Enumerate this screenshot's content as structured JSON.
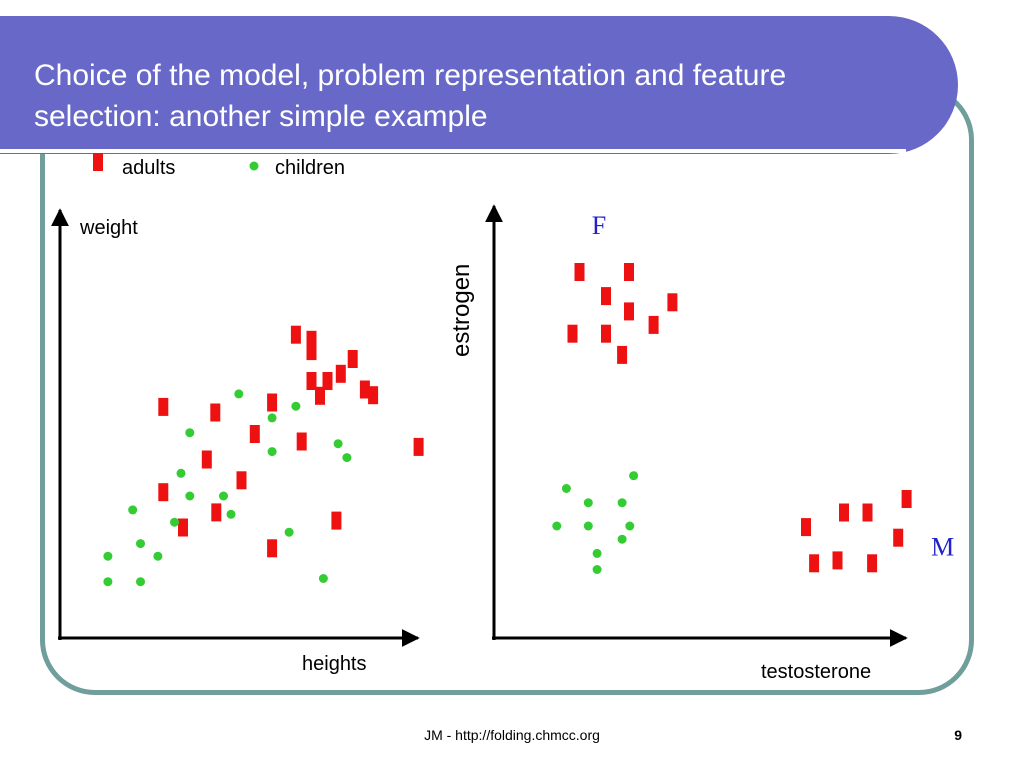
{
  "slide": {
    "title": "Choice of the model, problem representation and feature selection: another simple example",
    "footer": "JM - http://folding.chmcc.org",
    "page_number": "9"
  },
  "legend": {
    "adults_label": "adults",
    "children_label": "children"
  },
  "colors": {
    "title_band": "#6868c8",
    "frame": "#6f9e9b",
    "adults": "#ee1111",
    "children": "#33cc33",
    "letter_marker": "#2222cc"
  },
  "chart_data": [
    {
      "type": "scatter",
      "title": "",
      "xlabel": "heights",
      "ylabel": "weight",
      "xlim": [
        0,
        100
      ],
      "ylim": [
        0,
        100
      ],
      "series": [
        {
          "name": "adults",
          "marker": "rect",
          "points": [
            [
              63.5,
              85.8
            ],
            [
              68.1,
              84.2
            ],
            [
              68.1,
              80.6
            ],
            [
              76.7,
              73.4
            ],
            [
              80.2,
              78.1
            ],
            [
              68.1,
              71.1
            ],
            [
              72.8,
              71.1
            ],
            [
              83.8,
              68.4
            ],
            [
              86.2,
              66.6
            ],
            [
              70.6,
              66.4
            ],
            [
              24.5,
              62.9
            ],
            [
              39.8,
              61.1
            ],
            [
              56.5,
              64.3
            ],
            [
              51.4,
              54.3
            ],
            [
              65.2,
              51.9
            ],
            [
              99.6,
              50.2
            ],
            [
              37.3,
              46.2
            ],
            [
              47.5,
              39.6
            ],
            [
              24.5,
              35.8
            ],
            [
              40.1,
              29.4
            ],
            [
              30.3,
              24.6
            ],
            [
              75.4,
              26.8
            ],
            [
              56.5,
              18.0
            ]
          ]
        },
        {
          "name": "children",
          "marker": "circle",
          "points": [
            [
              46.7,
              67.0
            ],
            [
              63.5,
              63.1
            ],
            [
              56.5,
              59.4
            ],
            [
              32.3,
              54.7
            ],
            [
              56.5,
              48.7
            ],
            [
              75.9,
              51.2
            ],
            [
              78.5,
              46.8
            ],
            [
              29.7,
              41.8
            ],
            [
              32.3,
              34.6
            ],
            [
              42.2,
              34.6
            ],
            [
              15.5,
              30.2
            ],
            [
              44.4,
              28.8
            ],
            [
              27.8,
              26.3
            ],
            [
              61.5,
              23.1
            ],
            [
              17.8,
              19.5
            ],
            [
              8.2,
              15.5
            ],
            [
              22.9,
              15.5
            ],
            [
              8.2,
              7.4
            ],
            [
              17.8,
              7.4
            ],
            [
              71.6,
              8.4
            ]
          ]
        }
      ]
    },
    {
      "type": "scatter",
      "title": "",
      "xlabel": "testosterone",
      "ylabel": "estrogen",
      "xlim": [
        0,
        100
      ],
      "ylim": [
        0,
        100
      ],
      "series": [
        {
          "name": "adults",
          "marker": "rect",
          "points": [
            [
              13.4,
              92.6
            ],
            [
              26.3,
              92.6
            ],
            [
              20.3,
              86.0
            ],
            [
              37.6,
              84.3
            ],
            [
              26.3,
              81.8
            ],
            [
              32.7,
              78.1
            ],
            [
              11.6,
              75.7
            ],
            [
              20.3,
              75.7
            ],
            [
              24.5,
              69.9
            ],
            [
              98.6,
              30.4
            ],
            [
              82.3,
              26.7
            ],
            [
              88.4,
              26.7
            ],
            [
              72.4,
              22.7
            ],
            [
              96.4,
              19.8
            ],
            [
              74.5,
              12.8
            ],
            [
              80.6,
              13.6
            ],
            [
              89.6,
              12.8
            ]
          ]
        },
        {
          "name": "children",
          "marker": "circle",
          "points": [
            [
              27.5,
              36.8
            ],
            [
              10.0,
              33.3
            ],
            [
              15.7,
              29.4
            ],
            [
              24.5,
              29.4
            ],
            [
              7.5,
              23.0
            ],
            [
              15.7,
              23.0
            ],
            [
              26.5,
              23.0
            ],
            [
              24.5,
              19.4
            ],
            [
              18.0,
              15.5
            ],
            [
              18.0,
              11.1
            ]
          ]
        }
      ],
      "annotations": [
        {
          "text": "F",
          "x": 18.5,
          "y": 105.5
        },
        {
          "text": "M",
          "x": 108.0,
          "y": 17.4
        }
      ]
    }
  ]
}
